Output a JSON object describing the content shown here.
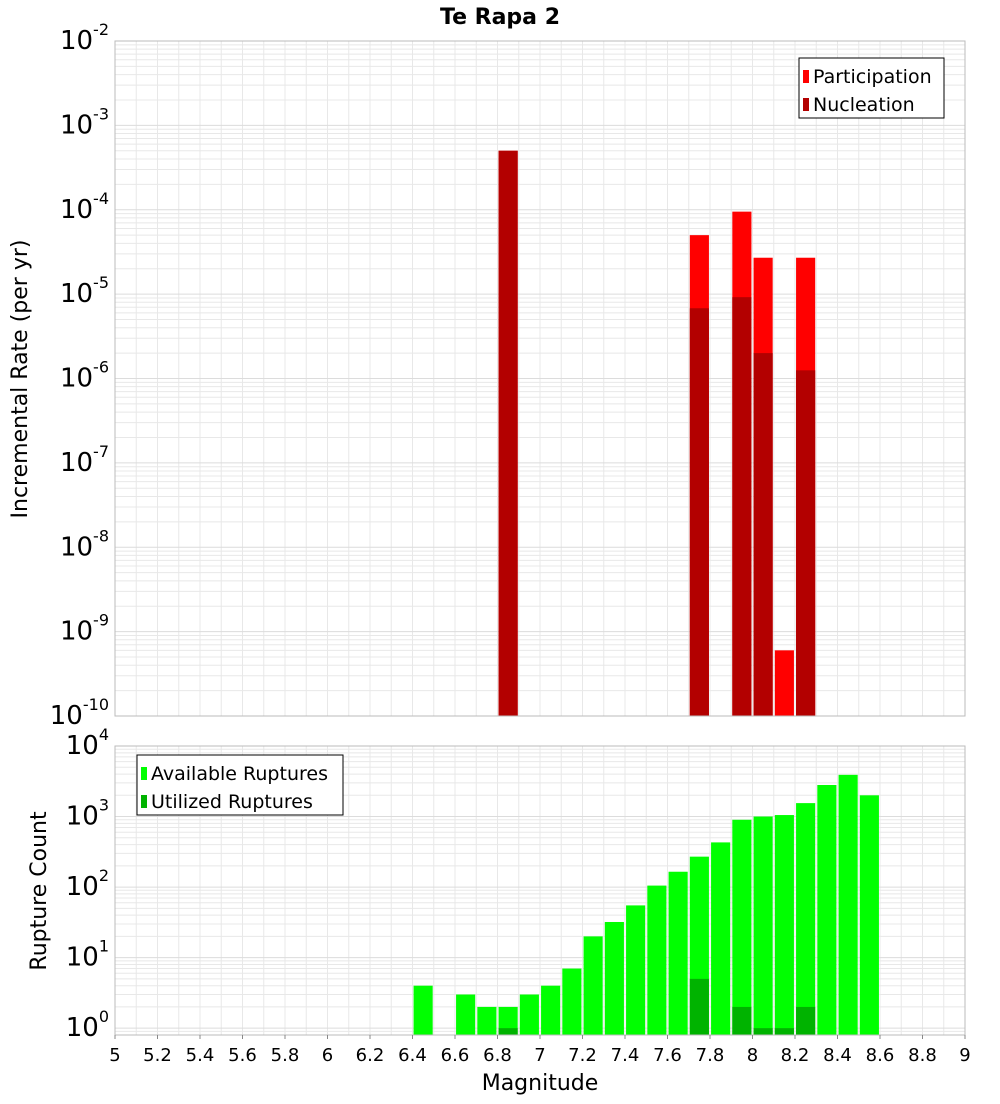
{
  "title": "Te Rapa 2",
  "xlabel": "Magnitude",
  "colors": {
    "participation": "#ff0000",
    "nucleation": "#b30000",
    "available": "#00ff00",
    "utilized": "#00b300",
    "grid": "#e8e8e8",
    "frame": "#bbbbbb"
  },
  "chart_data": [
    {
      "type": "bar",
      "ylabel": "Incremental Rate (per yr)",
      "yscale": "log",
      "ylim": [
        1e-10,
        0.01
      ],
      "ytick_exponents": [
        "-10",
        "-9",
        "-8",
        "-7",
        "-6",
        "-5",
        "-4",
        "-3",
        "-2"
      ],
      "xlim": [
        5,
        9
      ],
      "bar_width": 0.09,
      "legend_position": "top-right",
      "grid": true,
      "series": [
        {
          "name": "Participation",
          "color_key": "participation",
          "x": [
            6.85,
            7.75,
            7.95,
            8.05,
            8.15,
            8.25
          ],
          "values": [
            0.0005,
            5e-05,
            9.5e-05,
            2.7e-05,
            6e-10,
            2.7e-05
          ]
        },
        {
          "name": "Nucleation",
          "color_key": "nucleation",
          "x": [
            6.85,
            7.75,
            7.95,
            8.05,
            8.25
          ],
          "values": [
            0.0005,
            6.8e-06,
            9.2e-06,
            2e-06,
            1.25e-06
          ]
        }
      ]
    },
    {
      "type": "bar",
      "ylabel": "Rupture Count",
      "yscale": "log",
      "ylim": [
        0.8,
        10000
      ],
      "ytick_exponents": [
        "0",
        "1",
        "2",
        "3",
        "4"
      ],
      "xlim": [
        5,
        9
      ],
      "bar_width": 0.09,
      "legend_position": "top-left",
      "grid": true,
      "xticks": [
        "5",
        "5.2",
        "5.4",
        "5.6",
        "5.8",
        "6",
        "6.2",
        "6.4",
        "6.6",
        "6.8",
        "7",
        "7.2",
        "7.4",
        "7.6",
        "7.8",
        "8",
        "8.2",
        "8.4",
        "8.6",
        "8.8",
        "9"
      ],
      "series": [
        {
          "name": "Available Ruptures",
          "color_key": "available",
          "x": [
            6.45,
            6.65,
            6.75,
            6.85,
            6.95,
            7.05,
            7.15,
            7.25,
            7.35,
            7.45,
            7.55,
            7.65,
            7.75,
            7.85,
            7.95,
            8.05,
            8.15,
            8.25,
            8.35,
            8.45,
            8.55
          ],
          "values": [
            4,
            3,
            2,
            2,
            3,
            4,
            7,
            20,
            32,
            55,
            105,
            165,
            270,
            430,
            900,
            1000,
            1050,
            1550,
            2800,
            3900,
            2000
          ]
        },
        {
          "name": "Utilized Ruptures",
          "color_key": "utilized",
          "x": [
            6.85,
            7.75,
            7.95,
            8.05,
            8.15,
            8.25
          ],
          "values": [
            1,
            5,
            2,
            1,
            1,
            2
          ]
        }
      ]
    }
  ]
}
